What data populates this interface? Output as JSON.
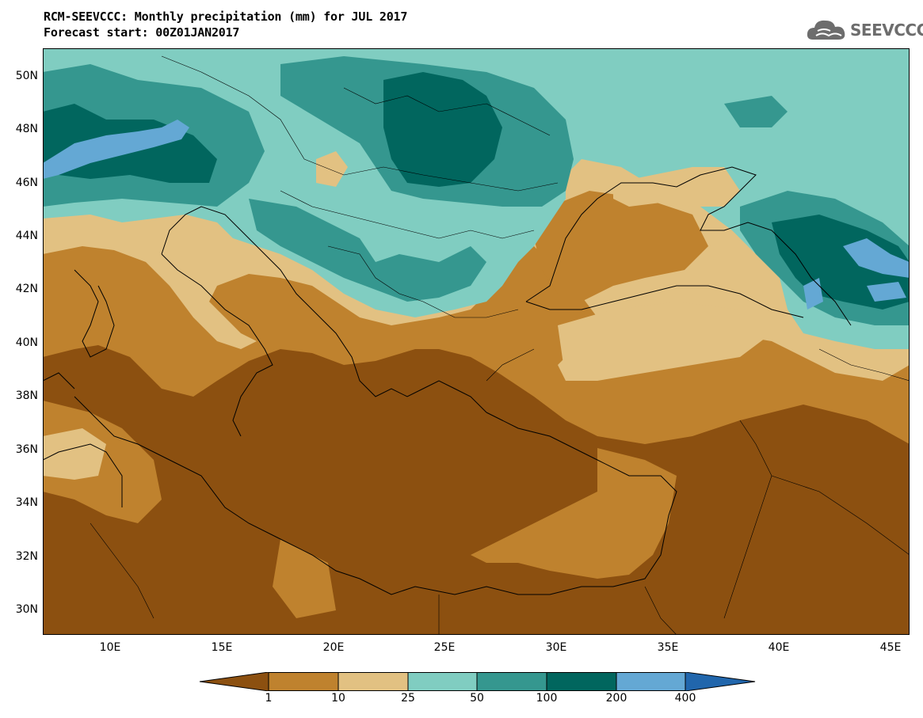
{
  "title": "RCM-SEEVCCC: Monthly precipitation (mm) for JUL 2017",
  "subtitle": "Forecast start: 00Z01JAN2017",
  "logo": {
    "text": "SEEVCCC",
    "icon": "cloud-icon"
  },
  "axes": {
    "lat_labels": [
      "50N",
      "48N",
      "46N",
      "44N",
      "42N",
      "40N",
      "38N",
      "36N",
      "34N",
      "32N",
      "30N"
    ],
    "lon_labels": [
      "10E",
      "15E",
      "20E",
      "25E",
      "30E",
      "35E",
      "40E",
      "45E"
    ]
  },
  "legend": {
    "levels": [
      "1",
      "10",
      "25",
      "50",
      "100",
      "200",
      "400"
    ],
    "colors": [
      "#8c5010",
      "#bf822e",
      "#e2c182",
      "#80cdc1",
      "#35978f",
      "#01665e",
      "#64a8d4",
      "#2166ac"
    ]
  }
}
